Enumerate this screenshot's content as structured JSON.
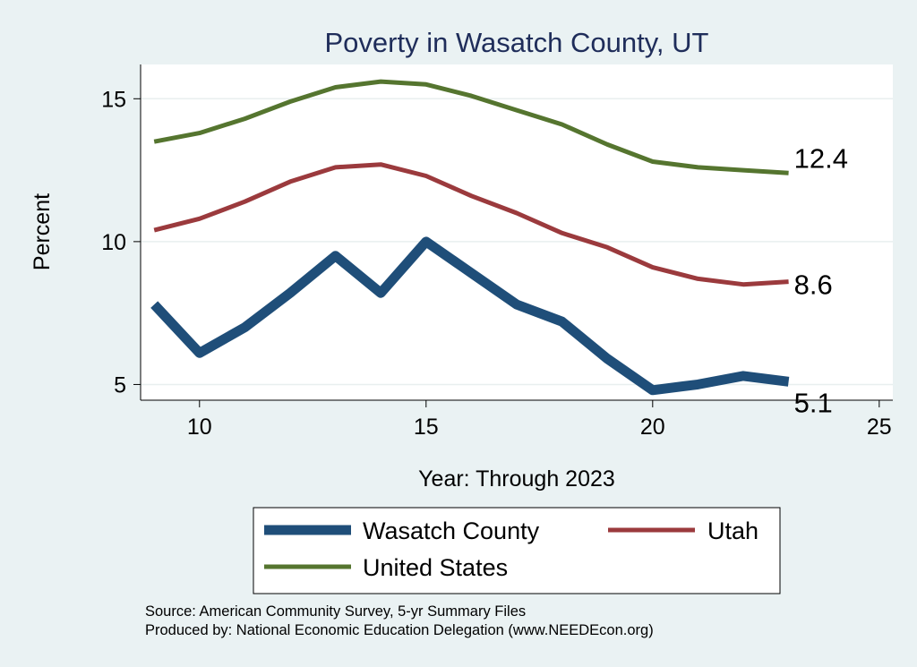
{
  "chart_data": {
    "type": "line",
    "title": "Poverty in Wasatch County, UT",
    "xlabel": "Year: Through 2023",
    "ylabel": "Percent",
    "xlim": [
      8.7,
      25.3
    ],
    "ylim": [
      4.45,
      16.2
    ],
    "xticks": [
      10,
      15,
      20,
      25
    ],
    "yticks": [
      5,
      10,
      15
    ],
    "grid": true,
    "series": [
      {
        "name": "United States",
        "color": "#55752f",
        "x": [
          9,
          10,
          11,
          12,
          13,
          14,
          15,
          16,
          17,
          18,
          19,
          20,
          21,
          22,
          23
        ],
        "values": [
          13.5,
          13.8,
          14.3,
          14.9,
          15.4,
          15.6,
          15.5,
          15.1,
          14.6,
          14.1,
          13.4,
          12.8,
          12.6,
          12.5,
          12.4
        ],
        "end_label": "12.4"
      },
      {
        "name": "Utah",
        "color": "#9b3a3d",
        "x": [
          9,
          10,
          11,
          12,
          13,
          14,
          15,
          16,
          17,
          18,
          19,
          20,
          21,
          22,
          23
        ],
        "values": [
          10.4,
          10.8,
          11.4,
          12.1,
          12.6,
          12.7,
          12.3,
          11.6,
          11.0,
          10.3,
          9.8,
          9.1,
          8.7,
          8.5,
          8.6
        ],
        "end_label": "8.6"
      },
      {
        "name": "Wasatch County",
        "color": "#1f4e79",
        "x": [
          9,
          10,
          11,
          12,
          13,
          14,
          15,
          16,
          17,
          18,
          19,
          20,
          21,
          22,
          23
        ],
        "values": [
          7.8,
          6.1,
          7.0,
          8.2,
          9.5,
          8.2,
          10.0,
          8.9,
          7.8,
          7.2,
          5.9,
          4.8,
          5.0,
          5.3,
          5.1
        ],
        "end_label": "5.1"
      }
    ],
    "legend": {
      "placement": "bottom",
      "entries": [
        "Wasatch County",
        "Utah",
        "United States"
      ]
    }
  },
  "source": {
    "line1": "Source: American Community Survey, 5-yr Summary Files",
    "line2": "Produced by: National Economic Education Delegation (www.NEEDEcon.org)"
  }
}
